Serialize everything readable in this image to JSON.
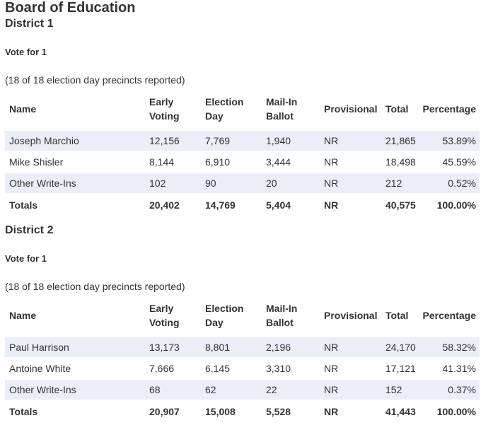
{
  "page_title": "Board of Education",
  "districts": [
    {
      "name": "District 1",
      "vote_for": "Vote for 1",
      "precincts": "(18 of 18 election day precincts reported)",
      "headers": {
        "name": "Name",
        "early_1": "Early",
        "early_2": "Voting",
        "eday_1": "Election",
        "eday_2": "Day",
        "mail_1": "Mail-In",
        "mail_2": "Ballot",
        "provisional": "Provisional",
        "total": "Total",
        "percentage": "Percentage"
      },
      "rows": [
        {
          "name": "Joseph Marchio",
          "early": "12,156",
          "eday": "7,769",
          "mail": "1,940",
          "provisional": "NR",
          "total": "21,865",
          "pct": "53.89%"
        },
        {
          "name": "Mike Shisler",
          "early": "8,144",
          "eday": "6,910",
          "mail": "3,444",
          "provisional": "NR",
          "total": "18,498",
          "pct": "45.59%"
        },
        {
          "name": "Other Write-Ins",
          "early": "102",
          "eday": "90",
          "mail": "20",
          "provisional": "NR",
          "total": "212",
          "pct": "0.52%"
        }
      ],
      "totals": {
        "name": "Totals",
        "early": "20,402",
        "eday": "14,769",
        "mail": "5,404",
        "provisional": "NR",
        "total": "40,575",
        "pct": "100.00%"
      }
    },
    {
      "name": "District 2",
      "vote_for": "Vote for 1",
      "precincts": "(18 of 18 election day precincts reported)",
      "headers": {
        "name": "Name",
        "early_1": "Early",
        "early_2": "Voting",
        "eday_1": "Election",
        "eday_2": "Day",
        "mail_1": "Mail-In",
        "mail_2": "Ballot",
        "provisional": "Provisional",
        "total": "Total",
        "percentage": "Percentage"
      },
      "rows": [
        {
          "name": "Paul Harrison",
          "early": "13,173",
          "eday": "8,801",
          "mail": "2,196",
          "provisional": "NR",
          "total": "24,170",
          "pct": "58.32%"
        },
        {
          "name": "Antoine White",
          "early": "7,666",
          "eday": "6,145",
          "mail": "3,310",
          "provisional": "NR",
          "total": "17,121",
          "pct": "41.31%"
        },
        {
          "name": "Other Write-Ins",
          "early": "68",
          "eday": "62",
          "mail": "22",
          "provisional": "NR",
          "total": "152",
          "pct": "0.37%"
        }
      ],
      "totals": {
        "name": "Totals",
        "early": "20,907",
        "eday": "15,008",
        "mail": "5,528",
        "provisional": "NR",
        "total": "41,443",
        "pct": "100.00%"
      }
    }
  ],
  "colors": {
    "alt_row": "#e9eef8",
    "text": "#333333"
  }
}
